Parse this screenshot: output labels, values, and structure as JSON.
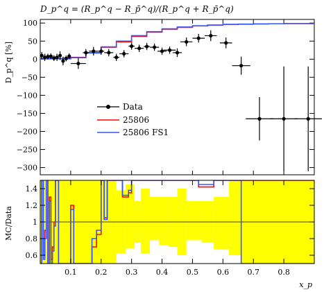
{
  "chart_data": [
    {
      "type": "scatter",
      "panel": "main",
      "title": "D_p^q = (R_p^q − R_p̄^q)/(R_p^q + R_p̄^q)",
      "ylabel": "D_p^q [%]",
      "xlim": [
        0.0,
        0.9
      ],
      "ylim": [
        -320,
        110
      ],
      "yticks": [
        -300,
        -250,
        -200,
        -150,
        -100,
        -50,
        0,
        50,
        100
      ],
      "legend": {
        "placement": "center-left",
        "entries": [
          "Data",
          "25806",
          "25806 FS1"
        ]
      },
      "data": {
        "name": "Data",
        "color": "#000000",
        "x": [
          0.005,
          0.015,
          0.025,
          0.035,
          0.045,
          0.055,
          0.065,
          0.075,
          0.085,
          0.095,
          0.125,
          0.15,
          0.175,
          0.2,
          0.225,
          0.25,
          0.275,
          0.3,
          0.325,
          0.35,
          0.375,
          0.4,
          0.425,
          0.45,
          0.48,
          0.52,
          0.56,
          0.61,
          0.66,
          0.72,
          0.8,
          0.88
        ],
        "xerr": [
          0.005,
          0.005,
          0.005,
          0.005,
          0.005,
          0.005,
          0.005,
          0.005,
          0.005,
          0.005,
          0.025,
          0.01,
          0.015,
          0.01,
          0.015,
          0.01,
          0.015,
          0.01,
          0.015,
          0.01,
          0.015,
          0.015,
          0.02,
          0.015,
          0.02,
          0.02,
          0.02,
          0.02,
          0.03,
          0.045,
          0.045,
          0.045
        ],
        "y": [
          10,
          5,
          7,
          8,
          3,
          5,
          10,
          -5,
          2,
          8,
          -12,
          18,
          22,
          22,
          18,
          5,
          15,
          36,
          30,
          35,
          33,
          22,
          25,
          18,
          48,
          58,
          65,
          45,
          -18,
          -165,
          -165,
          -165
        ],
        "yerr": [
          10,
          10,
          8,
          8,
          8,
          10,
          12,
          12,
          8,
          8,
          15,
          10,
          12,
          10,
          10,
          10,
          10,
          10,
          10,
          10,
          10,
          10,
          10,
          12,
          12,
          12,
          15,
          15,
          25,
          60,
          145,
          145
        ]
      },
      "series": [
        {
          "name": "25806",
          "color": "#ff0000",
          "step_edges": [
            0.0,
            0.1,
            0.15,
            0.2,
            0.25,
            0.3,
            0.35,
            0.4,
            0.45,
            0.5,
            0.55,
            0.6,
            0.65,
            0.7,
            0.75,
            0.8,
            0.85,
            0.9
          ],
          "values": [
            2,
            5,
            18,
            33,
            48,
            63,
            75,
            83,
            88,
            92,
            94,
            96,
            97,
            97.5,
            98,
            98.5,
            98.5
          ]
        },
        {
          "name": "25806 FS1",
          "color": "#3355ff",
          "step_edges": [
            0.0,
            0.1,
            0.15,
            0.2,
            0.25,
            0.3,
            0.35,
            0.4,
            0.45,
            0.5,
            0.55,
            0.6,
            0.65,
            0.7,
            0.75,
            0.8,
            0.85,
            0.9
          ],
          "values": [
            1,
            4,
            17,
            34,
            50,
            65,
            76,
            84,
            89,
            92.5,
            94.5,
            96.5,
            97,
            97.5,
            98,
            98.5,
            98.5
          ]
        }
      ]
    },
    {
      "type": "area",
      "panel": "ratio",
      "xlabel": "x_p",
      "ylabel": "MC/Data",
      "xlim": [
        0.0,
        0.9
      ],
      "ylim": [
        0.5,
        1.5
      ],
      "yticks": [
        0.6,
        0.8,
        1,
        1.2,
        1.4
      ],
      "xticks": [
        0.1,
        0.2,
        0.3,
        0.4,
        0.5,
        0.6,
        0.7,
        0.8
      ],
      "band": {
        "color": "#ffff00",
        "bins": [
          [
            0.0,
            0.01,
            0.5,
            1.5
          ],
          [
            0.01,
            0.02,
            0.5,
            1.5
          ],
          [
            0.02,
            0.1,
            0.5,
            1.5
          ],
          [
            0.1,
            0.15,
            0.5,
            1.5
          ],
          [
            0.15,
            0.2,
            0.5,
            1.5
          ],
          [
            0.2,
            0.25,
            0.5,
            1.5
          ],
          [
            0.25,
            0.28,
            0.62,
            1.38
          ],
          [
            0.28,
            0.31,
            0.68,
            1.45
          ],
          [
            0.31,
            0.33,
            0.75,
            1.25
          ],
          [
            0.33,
            0.36,
            0.62,
            1.4
          ],
          [
            0.36,
            0.39,
            0.78,
            1.3
          ],
          [
            0.39,
            0.42,
            0.72,
            1.3
          ],
          [
            0.42,
            0.45,
            0.7,
            1.3
          ],
          [
            0.45,
            0.48,
            0.6,
            1.4
          ],
          [
            0.48,
            0.53,
            0.78,
            1.25
          ],
          [
            0.53,
            0.57,
            0.75,
            1.25
          ],
          [
            0.57,
            0.62,
            0.67,
            1.3
          ],
          [
            0.62,
            0.66,
            0.6,
            1.5
          ],
          [
            0.66,
            0.9,
            0.5,
            1.5
          ]
        ]
      },
      "series": [
        {
          "name": "25806",
          "color": "#ff0000",
          "step_edges": [
            0.0,
            0.005,
            0.01,
            0.015,
            0.02,
            0.025,
            0.03,
            0.035,
            0.04,
            0.045,
            0.05,
            0.06,
            0.08,
            0.09,
            0.1,
            0.11,
            0.17,
            0.185,
            0.2,
            0.21,
            0.22,
            0.27,
            0.29,
            0.3,
            0.52,
            0.57,
            0.65,
            0.66,
            0.9
          ],
          "values": [
            0.5,
            1.5,
            0.6,
            0.9,
            1.5,
            0.5,
            1.3,
            0.55,
            0.7,
            1.0,
            1.5,
            0.5,
            0.5,
            0.5,
            1.2,
            0.5,
            0.7,
            0.85,
            1.5,
            1.05,
            1.5,
            1.3,
            1.35,
            1.5,
            1.42,
            1.5,
            1.5,
            1.5,
            1.5
          ]
        },
        {
          "name": "25806 FS1",
          "color": "#3355ff",
          "step_edges": [
            0.0,
            0.005,
            0.01,
            0.015,
            0.02,
            0.025,
            0.03,
            0.035,
            0.04,
            0.045,
            0.05,
            0.06,
            0.08,
            0.09,
            0.1,
            0.11,
            0.17,
            0.185,
            0.2,
            0.21,
            0.22,
            0.27,
            0.29,
            0.3,
            0.52,
            0.57,
            0.65,
            0.66,
            0.9
          ],
          "values": [
            0.5,
            1.5,
            0.55,
            0.8,
            1.5,
            0.5,
            1.25,
            0.5,
            0.65,
            0.95,
            1.5,
            0.5,
            0.5,
            0.5,
            1.15,
            0.5,
            0.8,
            0.9,
            1.5,
            1.03,
            1.5,
            1.32,
            1.38,
            1.5,
            1.45,
            1.5,
            1.5,
            0.5,
            0.5
          ]
        }
      ]
    }
  ]
}
